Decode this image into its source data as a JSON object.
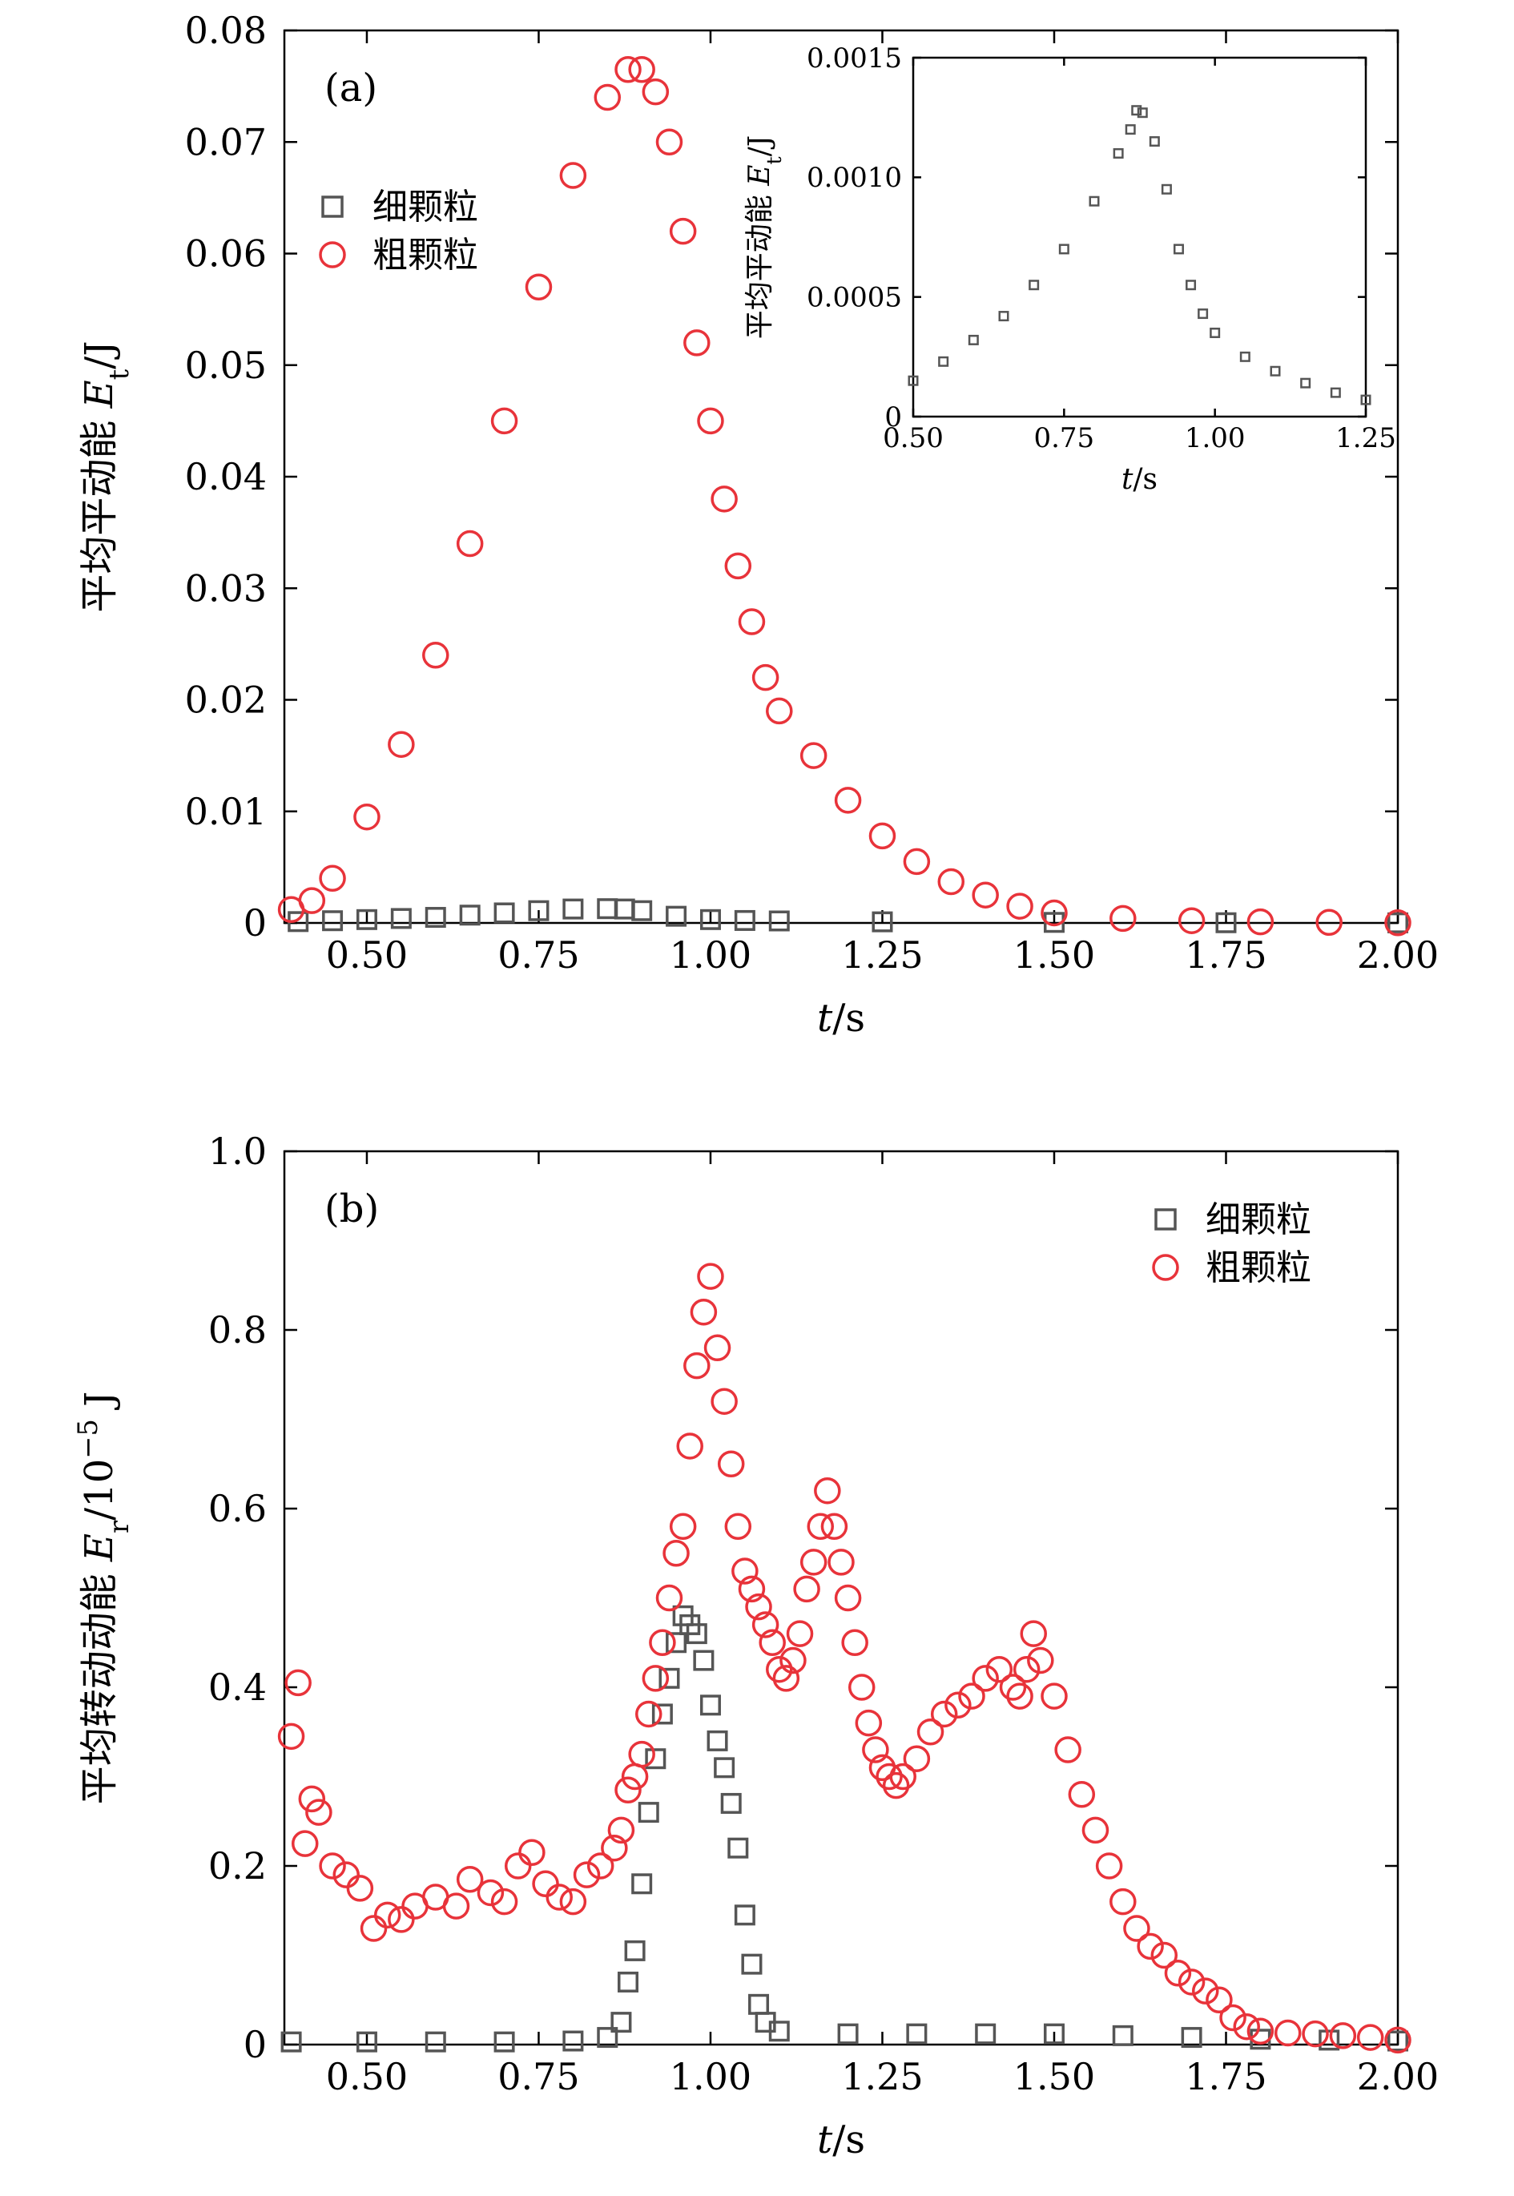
{
  "chart_data": [
    {
      "panel": "(a)",
      "type": "scatter",
      "xlabel": "t/s",
      "ylabel": "平均平动能 Et/J",
      "ylabel_main": "平均平动能 ",
      "ylabel_sym": "E",
      "ylabel_sub": "t",
      "ylabel_unit": "/J",
      "xlim": [
        0.38,
        2.0
      ],
      "ylim": [
        0,
        0.08
      ],
      "xticks": [
        0.5,
        0.75,
        1.0,
        1.25,
        1.5,
        1.75,
        2.0
      ],
      "xtick_labels": [
        "0.50",
        "0.75",
        "1.00",
        "1.25",
        "1.50",
        "1.75",
        "2.00"
      ],
      "yticks": [
        0,
        0.01,
        0.02,
        0.03,
        0.04,
        0.05,
        0.06,
        0.07,
        0.08
      ],
      "ytick_labels": [
        "0",
        "0.01",
        "0.02",
        "0.03",
        "0.04",
        "0.05",
        "0.06",
        "0.07",
        "0.08"
      ],
      "legend_position": "top-left",
      "series": [
        {
          "name": "细颗粒",
          "marker": "square",
          "color": "#555555",
          "x": [
            0.4,
            0.45,
            0.5,
            0.55,
            0.6,
            0.65,
            0.7,
            0.75,
            0.8,
            0.85,
            0.875,
            0.9,
            0.95,
            1.0,
            1.05,
            1.1,
            1.25,
            1.5,
            1.75,
            2.0
          ],
          "y": [
            0.00012,
            0.0002,
            0.0003,
            0.0004,
            0.0005,
            0.0007,
            0.0009,
            0.0011,
            0.00125,
            0.00128,
            0.00125,
            0.0011,
            0.0006,
            0.0003,
            0.00022,
            0.00018,
            0.0001,
            5e-05,
            2e-05,
            1e-05
          ]
        },
        {
          "name": "粗颗粒",
          "marker": "circle",
          "color": "#e8333a",
          "x": [
            0.39,
            0.42,
            0.45,
            0.5,
            0.55,
            0.6,
            0.65,
            0.7,
            0.75,
            0.8,
            0.85,
            0.88,
            0.9,
            0.92,
            0.94,
            0.96,
            0.98,
            1.0,
            1.02,
            1.04,
            1.06,
            1.08,
            1.1,
            1.15,
            1.2,
            1.25,
            1.3,
            1.35,
            1.4,
            1.45,
            1.5,
            1.6,
            1.7,
            1.8,
            1.9,
            2.0
          ],
          "y": [
            0.0012,
            0.002,
            0.004,
            0.0095,
            0.016,
            0.024,
            0.034,
            0.045,
            0.057,
            0.067,
            0.074,
            0.0765,
            0.0765,
            0.0745,
            0.07,
            0.062,
            0.052,
            0.045,
            0.038,
            0.032,
            0.027,
            0.022,
            0.019,
            0.015,
            0.011,
            0.0078,
            0.0055,
            0.0037,
            0.0025,
            0.0015,
            0.0009,
            0.0004,
            0.0002,
            0.0001,
            5e-05,
            2e-05
          ]
        }
      ]
    },
    {
      "panel": "inset",
      "type": "scatter",
      "xlabel": "t/s",
      "ylabel": "平均平动能 Et/J",
      "ylabel_main": "平均平动能 ",
      "ylabel_sym": "E",
      "ylabel_sub": "t",
      "ylabel_unit": "/J",
      "xlim": [
        0.5,
        1.25
      ],
      "ylim": [
        0,
        0.0015
      ],
      "xticks": [
        0.5,
        0.75,
        1.0,
        1.25
      ],
      "xtick_labels": [
        "0.50",
        "0.75",
        "1.00",
        "1.25"
      ],
      "yticks": [
        0,
        0.0005,
        0.001,
        0.0015
      ],
      "ytick_labels": [
        "0",
        "0.0005",
        "0.0010",
        "0.0015"
      ],
      "series": [
        {
          "name": "细颗粒",
          "marker": "square",
          "color": "#555555",
          "x": [
            0.5,
            0.55,
            0.6,
            0.65,
            0.7,
            0.75,
            0.8,
            0.84,
            0.86,
            0.87,
            0.88,
            0.9,
            0.92,
            0.94,
            0.96,
            0.98,
            1.0,
            1.05,
            1.1,
            1.15,
            1.2,
            1.25
          ],
          "y": [
            0.00015,
            0.00023,
            0.00032,
            0.00042,
            0.00055,
            0.0007,
            0.0009,
            0.0011,
            0.0012,
            0.00128,
            0.00127,
            0.00115,
            0.00095,
            0.0007,
            0.00055,
            0.00043,
            0.00035,
            0.00025,
            0.00019,
            0.00014,
            0.0001,
            7e-05
          ]
        }
      ]
    },
    {
      "panel": "(b)",
      "type": "scatter",
      "xlabel": "t/s",
      "ylabel": "平均转动动能 Er/10−5 J",
      "ylabel_main": "平均转动动能 ",
      "ylabel_sym": "E",
      "ylabel_sub": "r",
      "ylabel_unit": "/10",
      "ylabel_exp": "−5",
      "ylabel_unit2": " J",
      "xlim": [
        0.38,
        2.0
      ],
      "ylim": [
        0,
        1.0
      ],
      "xticks": [
        0.5,
        0.75,
        1.0,
        1.25,
        1.5,
        1.75,
        2.0
      ],
      "xtick_labels": [
        "0.50",
        "0.75",
        "1.00",
        "1.25",
        "1.50",
        "1.75",
        "2.00"
      ],
      "yticks": [
        0,
        0.2,
        0.4,
        0.6,
        0.8,
        1.0
      ],
      "ytick_labels": [
        "0",
        "0.2",
        "0.4",
        "0.6",
        "0.8",
        "1.0"
      ],
      "legend_position": "top-right",
      "series": [
        {
          "name": "细颗粒",
          "marker": "square",
          "color": "#555555",
          "x": [
            0.39,
            0.5,
            0.6,
            0.7,
            0.8,
            0.85,
            0.87,
            0.88,
            0.89,
            0.9,
            0.91,
            0.92,
            0.93,
            0.94,
            0.95,
            0.96,
            0.97,
            0.98,
            0.99,
            1.0,
            1.01,
            1.02,
            1.03,
            1.04,
            1.05,
            1.06,
            1.07,
            1.08,
            1.1,
            1.2,
            1.3,
            1.4,
            1.5,
            1.6,
            1.7,
            1.8,
            1.9,
            2.0
          ],
          "y": [
            0.003,
            0.003,
            0.003,
            0.003,
            0.004,
            0.008,
            0.025,
            0.07,
            0.105,
            0.18,
            0.26,
            0.32,
            0.37,
            0.41,
            0.45,
            0.48,
            0.47,
            0.46,
            0.43,
            0.38,
            0.34,
            0.31,
            0.27,
            0.22,
            0.145,
            0.09,
            0.045,
            0.025,
            0.015,
            0.012,
            0.012,
            0.012,
            0.012,
            0.01,
            0.008,
            0.006,
            0.005,
            0.004
          ]
        },
        {
          "name": "粗颗粒",
          "marker": "circle",
          "color": "#e8333a",
          "x": [
            0.39,
            0.4,
            0.41,
            0.42,
            0.43,
            0.45,
            0.47,
            0.49,
            0.51,
            0.53,
            0.55,
            0.57,
            0.6,
            0.63,
            0.65,
            0.68,
            0.7,
            0.72,
            0.74,
            0.76,
            0.78,
            0.8,
            0.82,
            0.84,
            0.86,
            0.87,
            0.88,
            0.89,
            0.9,
            0.91,
            0.92,
            0.93,
            0.94,
            0.95,
            0.96,
            0.97,
            0.98,
            0.99,
            1.0,
            1.01,
            1.02,
            1.03,
            1.04,
            1.05,
            1.06,
            1.07,
            1.08,
            1.09,
            1.1,
            1.11,
            1.12,
            1.13,
            1.14,
            1.15,
            1.16,
            1.17,
            1.18,
            1.19,
            1.2,
            1.21,
            1.22,
            1.23,
            1.24,
            1.25,
            1.26,
            1.27,
            1.28,
            1.3,
            1.32,
            1.34,
            1.36,
            1.38,
            1.4,
            1.42,
            1.44,
            1.45,
            1.46,
            1.47,
            1.48,
            1.5,
            1.52,
            1.54,
            1.56,
            1.58,
            1.6,
            1.62,
            1.64,
            1.66,
            1.68,
            1.7,
            1.72,
            1.74,
            1.76,
            1.78,
            1.8,
            1.84,
            1.88,
            1.92,
            1.96,
            2.0
          ],
          "y": [
            0.345,
            0.405,
            0.225,
            0.275,
            0.26,
            0.2,
            0.19,
            0.175,
            0.13,
            0.145,
            0.14,
            0.155,
            0.165,
            0.155,
            0.185,
            0.17,
            0.16,
            0.2,
            0.215,
            0.18,
            0.165,
            0.16,
            0.19,
            0.2,
            0.22,
            0.24,
            0.285,
            0.3,
            0.325,
            0.37,
            0.41,
            0.45,
            0.5,
            0.55,
            0.58,
            0.67,
            0.76,
            0.82,
            0.86,
            0.78,
            0.72,
            0.65,
            0.58,
            0.53,
            0.51,
            0.49,
            0.47,
            0.45,
            0.42,
            0.41,
            0.43,
            0.46,
            0.51,
            0.54,
            0.58,
            0.62,
            0.58,
            0.54,
            0.5,
            0.45,
            0.4,
            0.36,
            0.33,
            0.31,
            0.3,
            0.29,
            0.3,
            0.32,
            0.35,
            0.37,
            0.38,
            0.39,
            0.41,
            0.42,
            0.4,
            0.39,
            0.42,
            0.46,
            0.43,
            0.39,
            0.33,
            0.28,
            0.24,
            0.2,
            0.16,
            0.13,
            0.11,
            0.1,
            0.08,
            0.07,
            0.06,
            0.05,
            0.03,
            0.02,
            0.015,
            0.013,
            0.012,
            0.01,
            0.008,
            0.005
          ]
        }
      ]
    }
  ]
}
